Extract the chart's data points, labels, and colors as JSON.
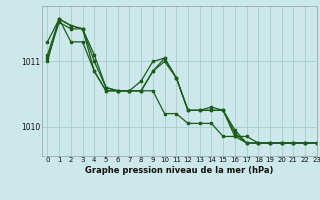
{
  "bg_color": "#cce8ea",
  "grid_color": "#aacccc",
  "line_color": "#1a5c1a",
  "title": "Graphe pression niveau de la mer (hPa)",
  "xlim": [
    -0.5,
    23
  ],
  "ylim": [
    1009.55,
    1011.85
  ],
  "yticks": [
    1010,
    1011
  ],
  "xticks": [
    0,
    1,
    2,
    3,
    4,
    5,
    6,
    7,
    8,
    9,
    10,
    11,
    12,
    13,
    14,
    15,
    16,
    17,
    18,
    19,
    20,
    21,
    22,
    23
  ],
  "series": [
    [
      1011.1,
      1011.65,
      1011.3,
      1011.3,
      1010.85,
      1010.55,
      1010.55,
      1010.55,
      1010.55,
      1010.55,
      1010.2,
      1010.2,
      1010.05,
      1010.05,
      1010.05,
      1009.85,
      1009.85,
      1009.85,
      1009.75,
      1009.75,
      1009.75,
      1009.75,
      1009.75,
      1009.75
    ],
    [
      1011.3,
      1011.65,
      1011.55,
      1011.5,
      1010.85,
      1010.55,
      1010.55,
      1010.55,
      1010.7,
      1011.0,
      1011.05,
      1010.75,
      1010.25,
      1010.25,
      1010.25,
      1010.25,
      1009.9,
      1009.75,
      1009.75,
      1009.75,
      1009.75,
      1009.75,
      1009.75,
      1009.75
    ],
    [
      1011.0,
      1011.65,
      1011.55,
      1011.5,
      1011.1,
      1010.6,
      1010.55,
      1010.55,
      1010.55,
      1010.85,
      1011.05,
      1010.75,
      1010.25,
      1010.25,
      1010.3,
      1010.25,
      1009.95,
      1009.75,
      1009.75,
      1009.75,
      1009.75,
      1009.75,
      1009.75,
      1009.75
    ],
    [
      1011.05,
      1011.6,
      1011.5,
      1011.5,
      1011.0,
      1010.6,
      1010.55,
      1010.55,
      1010.55,
      1010.85,
      1011.0,
      1010.75,
      1010.25,
      1010.25,
      1010.25,
      1010.25,
      1009.85,
      1009.75,
      1009.75,
      1009.75,
      1009.75,
      1009.75,
      1009.75,
      1009.75
    ]
  ],
  "title_fontsize": 6.0,
  "tick_fontsize": 5.0,
  "ytick_fontsize": 5.5
}
